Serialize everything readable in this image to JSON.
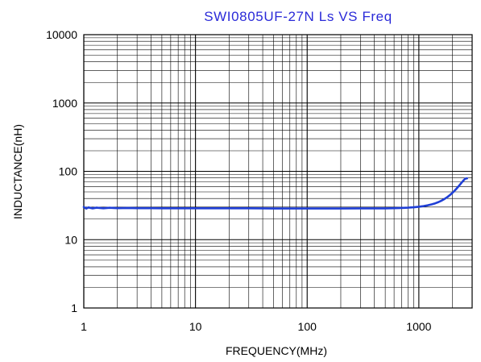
{
  "chart_data": {
    "type": "line",
    "title": "SWI0805UF-27N Ls VS Freq",
    "xlabel": "FREQUENCY(MHz)",
    "ylabel": "INDUCTANCE(nH)",
    "x_scale": "log",
    "y_scale": "log",
    "xlim": [
      1,
      3000
    ],
    "ylim": [
      1,
      10000
    ],
    "x_ticks": [
      1,
      10,
      100,
      1000
    ],
    "x_tick_labels": [
      "1",
      "10",
      "100",
      "1000"
    ],
    "y_ticks": [
      1,
      10,
      100,
      1000,
      10000
    ],
    "y_tick_labels": [
      "1",
      "10",
      "100",
      "1000",
      "10000"
    ],
    "grid": true,
    "series": [
      {
        "color": "#1f3fd6",
        "x": [
          1,
          1.05,
          1.1,
          1.2,
          1.3,
          1.5,
          1.7,
          2,
          2.5,
          3,
          4,
          5,
          7,
          10,
          15,
          20,
          30,
          40,
          50,
          70,
          100,
          150,
          200,
          300,
          400,
          500,
          600,
          700,
          800,
          900,
          1000,
          1100,
          1200,
          1300,
          1400,
          1500,
          1600,
          1700,
          1800,
          1900,
          2000,
          2100,
          2200,
          2300,
          2400,
          2500,
          2600,
          2700
        ],
        "y": [
          30.0,
          28.5,
          29.6,
          28.7,
          29.4,
          28.8,
          29.3,
          28.9,
          29.1,
          28.9,
          28.9,
          28.8,
          28.8,
          28.8,
          28.8,
          28.8,
          28.8,
          28.7,
          28.6,
          28.6,
          28.6,
          28.6,
          28.6,
          28.7,
          28.7,
          28.7,
          28.9,
          29.1,
          29.4,
          29.8,
          30.3,
          31.0,
          31.8,
          32.8,
          34.0,
          35.5,
          37.3,
          39.5,
          42.0,
          45.0,
          48.5,
          52.5,
          57.0,
          62.0,
          67.5,
          73.0,
          78.0,
          79.0
        ]
      }
    ]
  }
}
